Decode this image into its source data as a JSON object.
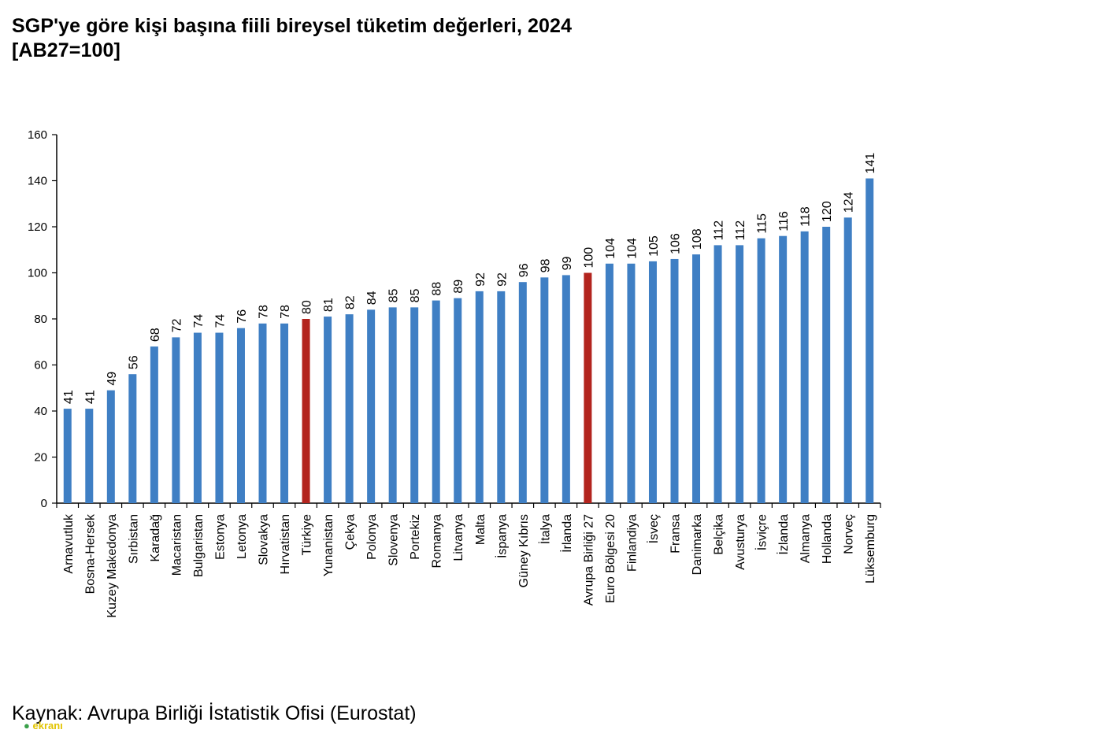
{
  "title_line1": "SGP'ye göre kişi başına fiili bireysel tüketim değerleri, 2024",
  "title_line2": "[AB27=100]",
  "source": "Kaynak: Avrupa Birliği İstatistik Ofisi (Eurostat)",
  "watermark": "ekranı",
  "colors": {
    "bar": "#3f7fc4",
    "highlight": "#b3241e",
    "axis": "#000000"
  },
  "chart_data": {
    "type": "bar",
    "title": "SGP'ye göre kişi başına fiili bireysel tüketim değerleri, 2024 [AB27=100]",
    "categories": [
      "Arnavutluk",
      "Bosna-Hersek",
      "Kuzey Makedonya",
      "Sırbistan",
      "Karadağ",
      "Macaristan",
      "Bulgaristan",
      "Estonya",
      "Letonya",
      "Slovakya",
      "Hırvatistan",
      "Türkiye",
      "Yunanistan",
      "Çekya",
      "Polonya",
      "Slovenya",
      "Portekiz",
      "Romanya",
      "Litvanya",
      "Malta",
      "İspanya",
      "Güney Kıbrıs",
      "İtalya",
      "İrlanda",
      "Avrupa Birliği 27",
      "Euro Bölgesi 20",
      "Finlandiya",
      "İsveç",
      "Fransa",
      "Danimarka",
      "Belçika",
      "Avusturya",
      "İsviçre",
      "İzlanda",
      "Almanya",
      "Hollanda",
      "Norveç",
      "Lüksemburg"
    ],
    "values": [
      41,
      41,
      49,
      56,
      68,
      72,
      74,
      74,
      76,
      78,
      78,
      80,
      81,
      82,
      84,
      85,
      85,
      88,
      89,
      92,
      92,
      96,
      98,
      99,
      100,
      104,
      104,
      105,
      106,
      108,
      112,
      112,
      115,
      116,
      118,
      120,
      124,
      141
    ],
    "highlighted": [
      "Türkiye",
      "Avrupa Birliği 27"
    ],
    "ylim": [
      0,
      160
    ],
    "yticks": [
      0,
      20,
      40,
      60,
      80,
      100,
      120,
      140,
      160
    ],
    "xlabel": "",
    "ylabel": "",
    "grid": false,
    "legend": "none"
  }
}
